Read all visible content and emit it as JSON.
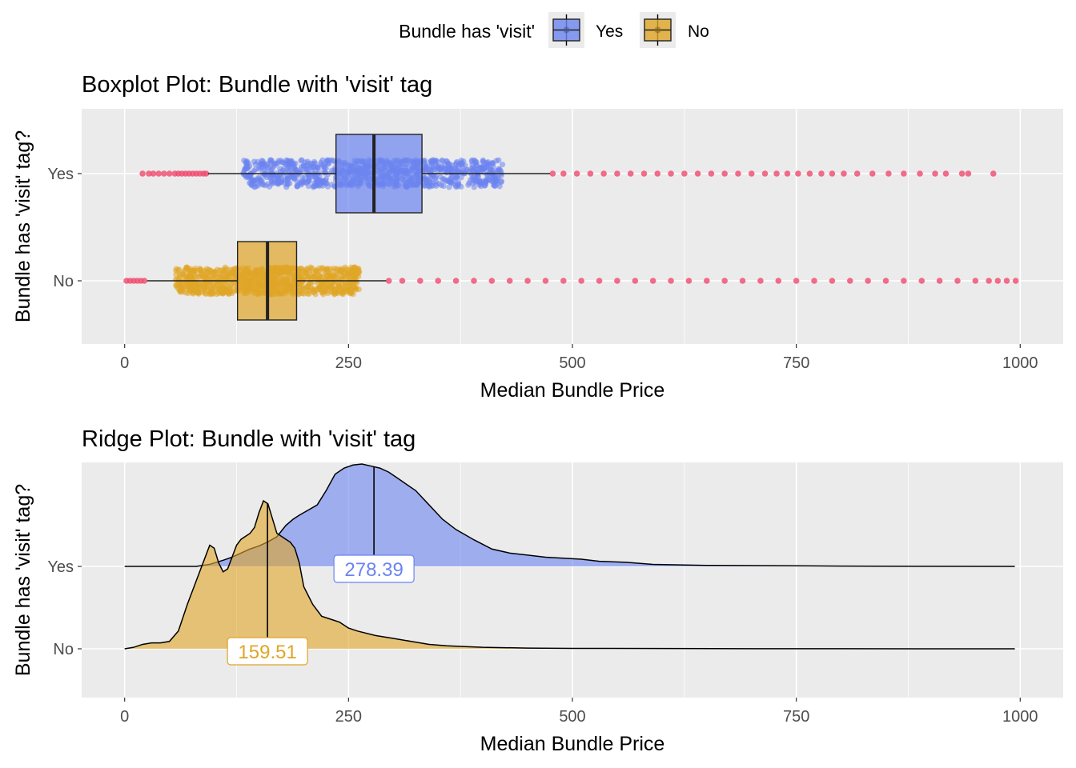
{
  "legend": {
    "title": "Bundle has 'visit'",
    "items": [
      {
        "label": "Yes",
        "color": "#6B84F0"
      },
      {
        "label": "No",
        "color": "#E0A526"
      }
    ]
  },
  "outlier_color": "#F04A6E",
  "chart_data": [
    {
      "type": "boxplot",
      "title": "Boxplot Plot: Bundle with 'visit' tag",
      "xlabel": "Median Bundle Price",
      "ylabel": "Bundle has 'visit' tag?",
      "xlim": [
        -48,
        1048
      ],
      "x_ticks": [
        0,
        250,
        500,
        750,
        1000
      ],
      "categories": [
        "Yes",
        "No"
      ],
      "grid": true,
      "series": [
        {
          "name": "Yes",
          "whisker_low": 93,
          "q1": 236,
          "median": 278.39,
          "q3": 332,
          "whisker_high": 475,
          "jitter_range": [
            132,
            422
          ],
          "outliers": [
            20,
            27,
            32,
            38,
            44,
            50,
            56,
            60,
            64,
            68,
            72,
            76,
            80,
            84,
            88,
            91,
            478,
            490,
            505,
            520,
            535,
            550,
            565,
            580,
            595,
            610,
            625,
            640,
            655,
            670,
            685,
            700,
            715,
            728,
            740,
            752,
            765,
            778,
            790,
            803,
            818,
            835,
            853,
            870,
            888,
            905,
            917,
            935,
            942,
            970
          ]
        },
        {
          "name": "No",
          "whisker_low": 25,
          "q1": 126,
          "median": 159.51,
          "q3": 192,
          "whisker_high": 292,
          "jitter_range": [
            57,
            262
          ],
          "outliers": [
            2,
            6,
            10,
            14,
            18,
            22,
            295,
            310,
            330,
            350,
            370,
            390,
            410,
            430,
            450,
            470,
            490,
            510,
            530,
            550,
            570,
            590,
            610,
            630,
            650,
            670,
            690,
            710,
            730,
            750,
            770,
            790,
            810,
            830,
            850,
            870,
            890,
            910,
            930,
            950,
            965,
            975,
            985,
            995
          ]
        }
      ]
    },
    {
      "type": "area",
      "subtype": "ridgeline",
      "title": "Ridge Plot: Bundle with 'visit' tag",
      "xlabel": "Median Bundle Price",
      "ylabel": "Bundle has 'visit' tag?",
      "xlim": [
        -48,
        1048
      ],
      "x_ticks": [
        0,
        250,
        500,
        750,
        1000
      ],
      "categories": [
        "Yes",
        "No"
      ],
      "grid": true,
      "series": [
        {
          "name": "Yes",
          "median_label": "278.39",
          "median": 278.39,
          "x": [
            0,
            80,
            95,
            110,
            120,
            130,
            140,
            150,
            160,
            170,
            180,
            188,
            195,
            205,
            215,
            225,
            235,
            245,
            255,
            265,
            275,
            285,
            295,
            305,
            315,
            325,
            340,
            355,
            370,
            390,
            410,
            430,
            450,
            470,
            490,
            510,
            530,
            560,
            590,
            620,
            650,
            700,
            800,
            900,
            994
          ],
          "y": [
            0,
            0,
            0.02,
            0.06,
            0.09,
            0.13,
            0.17,
            0.2,
            0.24,
            0.29,
            0.4,
            0.46,
            0.5,
            0.55,
            0.6,
            0.74,
            0.9,
            0.96,
            0.99,
            1.0,
            0.98,
            0.96,
            0.92,
            0.86,
            0.8,
            0.74,
            0.6,
            0.46,
            0.36,
            0.26,
            0.17,
            0.13,
            0.11,
            0.09,
            0.08,
            0.07,
            0.05,
            0.04,
            0.02,
            0.015,
            0.01,
            0.008,
            0.003,
            0.001,
            0
          ]
        },
        {
          "name": "No",
          "median_label": "159.51",
          "median": 159.51,
          "x": [
            0,
            10,
            20,
            30,
            40,
            50,
            60,
            70,
            80,
            90,
            95,
            100,
            105,
            110,
            115,
            120,
            125,
            130,
            135,
            140,
            145,
            150,
            155,
            160,
            165,
            170,
            175,
            180,
            185,
            190,
            195,
            200,
            210,
            220,
            230,
            240,
            250,
            260,
            280,
            300,
            320,
            340,
            360,
            380,
            400,
            450,
            500,
            600,
            700,
            800,
            900,
            994
          ],
          "y": [
            0,
            0.01,
            0.03,
            0.04,
            0.04,
            0.05,
            0.12,
            0.3,
            0.46,
            0.62,
            0.7,
            0.68,
            0.58,
            0.52,
            0.54,
            0.62,
            0.7,
            0.74,
            0.76,
            0.78,
            0.82,
            0.92,
            1.0,
            0.98,
            0.88,
            0.78,
            0.76,
            0.74,
            0.72,
            0.68,
            0.58,
            0.42,
            0.3,
            0.22,
            0.2,
            0.18,
            0.14,
            0.12,
            0.09,
            0.07,
            0.05,
            0.03,
            0.02,
            0.015,
            0.01,
            0.005,
            0.003,
            0.002,
            0.001,
            0.001,
            0,
            0
          ]
        }
      ]
    }
  ]
}
